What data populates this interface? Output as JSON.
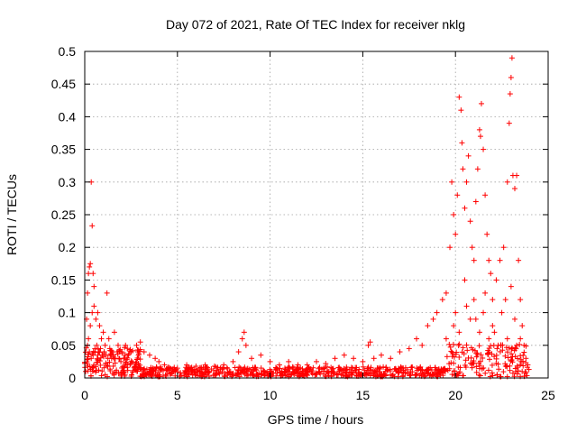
{
  "chart_data": {
    "type": "scatter",
    "title": "Day 072 of 2021, Rate Of TEC Index for receiver nklg",
    "xlabel": "GPS time / hours",
    "ylabel": "ROTI / TECUs",
    "xlim": [
      0,
      25
    ],
    "ylim": [
      0,
      0.5
    ],
    "x_ticks": [
      0,
      5,
      10,
      15,
      20,
      25
    ],
    "x_tick_labels": [
      "0",
      "5",
      "10",
      "15",
      "20",
      "25"
    ],
    "y_ticks": [
      0,
      0.05,
      0.1,
      0.15,
      0.2,
      0.25,
      0.3,
      0.35,
      0.4,
      0.45,
      0.5
    ],
    "y_tick_labels": [
      "0",
      "0.05",
      "0.1",
      "0.15",
      "0.2",
      "0.25",
      "0.3",
      "0.35",
      "0.4",
      "0.45",
      "0.5"
    ],
    "grid": true,
    "marker": "plus",
    "color": "#ff0000",
    "series": [
      {
        "name": "",
        "points": [
          [
            0.05,
            0.01
          ],
          [
            0.1,
            0.09
          ],
          [
            0.15,
            0.13
          ],
          [
            0.2,
            0.16
          ],
          [
            0.25,
            0.17
          ],
          [
            0.3,
            0.175
          ],
          [
            0.35,
            0.3
          ],
          [
            0.4,
            0.233
          ],
          [
            0.45,
            0.16
          ],
          [
            0.5,
            0.14
          ],
          [
            0.2,
            0.06
          ],
          [
            0.3,
            0.08
          ],
          [
            0.4,
            0.1
          ],
          [
            0.5,
            0.11
          ],
          [
            0.6,
            0.09
          ],
          [
            0.7,
            0.1
          ],
          [
            0.8,
            0.08
          ],
          [
            0.9,
            0.06
          ],
          [
            1.0,
            0.07
          ],
          [
            1.2,
            0.13
          ],
          [
            1.1,
            0.05
          ],
          [
            1.3,
            0.06
          ],
          [
            1.5,
            0.04
          ],
          [
            1.6,
            0.07
          ],
          [
            1.8,
            0.05
          ],
          [
            2.0,
            0.04
          ],
          [
            2.2,
            0.05
          ],
          [
            2.5,
            0.04
          ],
          [
            2.8,
            0.05
          ],
          [
            3.0,
            0.055
          ],
          [
            0.15,
            0.05
          ],
          [
            0.25,
            0.04
          ],
          [
            0.35,
            0.03
          ],
          [
            0.45,
            0.035
          ],
          [
            0.55,
            0.045
          ],
          [
            0.65,
            0.05
          ],
          [
            0.75,
            0.04
          ],
          [
            0.85,
            0.045
          ],
          [
            0.95,
            0.035
          ],
          [
            1.05,
            0.04
          ],
          [
            1.15,
            0.035
          ],
          [
            1.25,
            0.03
          ],
          [
            1.35,
            0.045
          ],
          [
            1.45,
            0.03
          ],
          [
            1.55,
            0.035
          ],
          [
            1.65,
            0.03
          ],
          [
            1.75,
            0.04
          ],
          [
            1.85,
            0.03
          ],
          [
            1.95,
            0.025
          ],
          [
            2.1,
            0.03
          ],
          [
            3.2,
            0.04
          ],
          [
            3.5,
            0.035
          ],
          [
            3.8,
            0.03
          ],
          [
            4.0,
            0.025
          ],
          [
            4.3,
            0.02
          ],
          [
            4.6,
            0.015
          ],
          [
            5.0,
            0.015
          ],
          [
            5.5,
            0.02
          ],
          [
            6.0,
            0.018
          ],
          [
            6.5,
            0.02
          ],
          [
            7.0,
            0.018
          ],
          [
            7.5,
            0.02
          ],
          [
            8.0,
            0.025
          ],
          [
            8.3,
            0.04
          ],
          [
            8.5,
            0.06
          ],
          [
            8.6,
            0.07
          ],
          [
            8.7,
            0.05
          ],
          [
            9.0,
            0.03
          ],
          [
            9.5,
            0.035
          ],
          [
            10.0,
            0.025
          ],
          [
            10.5,
            0.02
          ],
          [
            11.0,
            0.025
          ],
          [
            11.5,
            0.02
          ],
          [
            12.0,
            0.02
          ],
          [
            12.5,
            0.025
          ],
          [
            13.0,
            0.022
          ],
          [
            13.5,
            0.03
          ],
          [
            14.0,
            0.035
          ],
          [
            14.5,
            0.03
          ],
          [
            15.0,
            0.025
          ],
          [
            15.3,
            0.05
          ],
          [
            15.4,
            0.055
          ],
          [
            15.6,
            0.03
          ],
          [
            16.0,
            0.035
          ],
          [
            16.5,
            0.03
          ],
          [
            17.0,
            0.04
          ],
          [
            17.5,
            0.045
          ],
          [
            17.9,
            0.06
          ],
          [
            18.2,
            0.05
          ],
          [
            18.5,
            0.08
          ],
          [
            18.8,
            0.09
          ],
          [
            19.0,
            0.1
          ],
          [
            19.3,
            0.12
          ],
          [
            19.5,
            0.13
          ],
          [
            19.7,
            0.2
          ],
          [
            19.8,
            0.3
          ],
          [
            19.9,
            0.25
          ],
          [
            20.0,
            0.22
          ],
          [
            20.1,
            0.28
          ],
          [
            20.2,
            0.43
          ],
          [
            20.3,
            0.41
          ],
          [
            20.35,
            0.36
          ],
          [
            20.4,
            0.32
          ],
          [
            20.5,
            0.26
          ],
          [
            20.6,
            0.3
          ],
          [
            20.7,
            0.34
          ],
          [
            20.8,
            0.24
          ],
          [
            20.9,
            0.2
          ],
          [
            21.0,
            0.18
          ],
          [
            21.1,
            0.27
          ],
          [
            21.2,
            0.32
          ],
          [
            21.3,
            0.38
          ],
          [
            21.35,
            0.37
          ],
          [
            21.4,
            0.42
          ],
          [
            21.5,
            0.35
          ],
          [
            21.6,
            0.28
          ],
          [
            21.7,
            0.22
          ],
          [
            21.8,
            0.18
          ],
          [
            21.9,
            0.16
          ],
          [
            22.0,
            0.12
          ],
          [
            22.2,
            0.15
          ],
          [
            22.4,
            0.18
          ],
          [
            22.6,
            0.2
          ],
          [
            22.8,
            0.3
          ],
          [
            22.9,
            0.39
          ],
          [
            22.95,
            0.435
          ],
          [
            23.0,
            0.46
          ],
          [
            23.05,
            0.49
          ],
          [
            23.1,
            0.31
          ],
          [
            23.2,
            0.29
          ],
          [
            23.3,
            0.31
          ],
          [
            23.4,
            0.18
          ],
          [
            23.5,
            0.12
          ],
          [
            23.6,
            0.08
          ],
          [
            23.7,
            0.05
          ],
          [
            23.8,
            0.03
          ],
          [
            23.9,
            0.02
          ],
          [
            20.0,
            0.1
          ],
          [
            20.5,
            0.15
          ],
          [
            21.0,
            0.12
          ],
          [
            21.5,
            0.1
          ],
          [
            22.0,
            0.08
          ],
          [
            22.5,
            0.1
          ],
          [
            23.0,
            0.14
          ],
          [
            23.5,
            0.06
          ],
          [
            19.5,
            0.06
          ],
          [
            20.2,
            0.07
          ],
          [
            20.8,
            0.09
          ],
          [
            21.3,
            0.07
          ],
          [
            21.8,
            0.06
          ],
          [
            22.3,
            0.05
          ],
          [
            22.8,
            0.06
          ],
          [
            23.3,
            0.05
          ],
          [
            19.9,
            0.08
          ],
          [
            20.6,
            0.11
          ],
          [
            21.1,
            0.09
          ],
          [
            21.6,
            0.13
          ],
          [
            22.1,
            0.07
          ],
          [
            22.7,
            0.12
          ],
          [
            23.2,
            0.09
          ]
        ]
      }
    ]
  }
}
